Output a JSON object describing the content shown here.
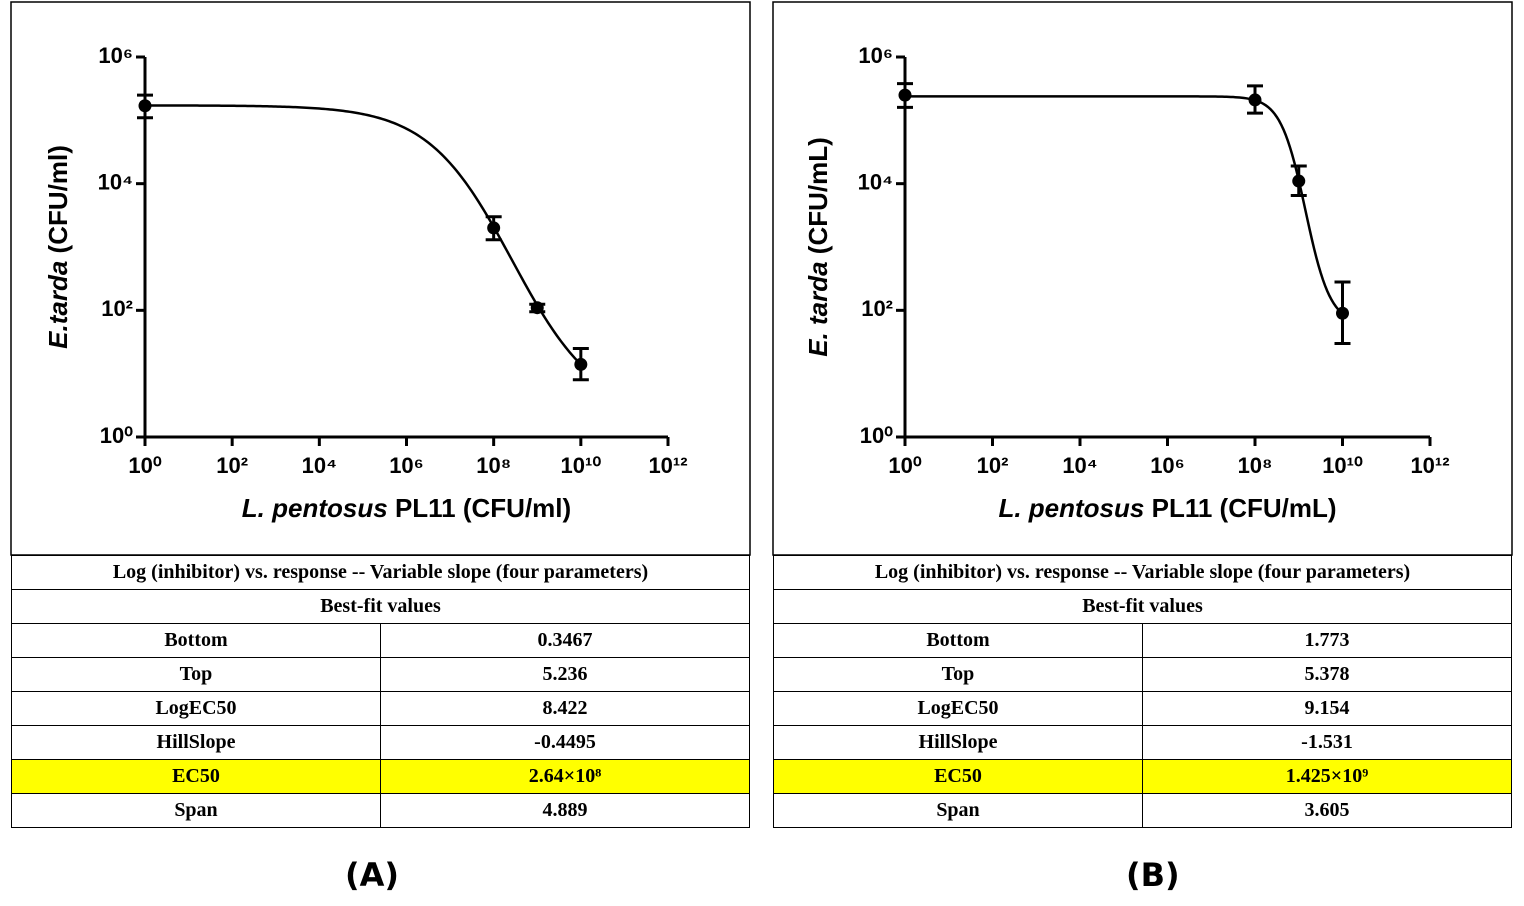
{
  "chart_data": [
    {
      "type": "scatter",
      "xscale": "log",
      "yscale": "log",
      "ylabel_species": "E.tarda",
      "ylabel_unit": "(CFU/ml)",
      "xlabel_species": "L. pentosus",
      "xlabel_unit": "PL11 (CFU/ml)",
      "x": [
        1,
        100000000.0,
        1000000000.0,
        10000000000.0
      ],
      "values": [
        170000,
        2000,
        110,
        14
      ],
      "lower": [
        110000,
        1300,
        95,
        8
      ],
      "upper": [
        250000,
        3000,
        125,
        25
      ],
      "color": "#000000",
      "xlim": [
        1,
        1000000000000.0
      ],
      "ylim": [
        1,
        1000000.0
      ],
      "xticks": [
        {
          "value": 1,
          "label": "10⁰"
        },
        {
          "value": 100,
          "label": "10²"
        },
        {
          "value": 10000,
          "label": "10⁴"
        },
        {
          "value": 1000000.0,
          "label": "10⁶"
        },
        {
          "value": 100000000.0,
          "label": "10⁸"
        },
        {
          "value": 10000000000.0,
          "label": "10¹⁰"
        },
        {
          "value": 1000000000000.0,
          "label": "10¹²"
        }
      ],
      "yticks": [
        {
          "value": 1,
          "label": "10⁰"
        },
        {
          "value": 100,
          "label": "10²"
        },
        {
          "value": 10000,
          "label": "10⁴"
        },
        {
          "value": 1000000.0,
          "label": "10⁶"
        }
      ]
    },
    {
      "type": "scatter",
      "xscale": "log",
      "yscale": "log",
      "ylabel_species": "E. tarda",
      "ylabel_unit": "(CFU/mL)",
      "xlabel_species": "L. pentosus",
      "xlabel_unit": "PL11 (CFU/mL)",
      "x": [
        1,
        100000000.0,
        1000000000.0,
        10000000000.0
      ],
      "values": [
        250000,
        210000,
        11000,
        90
      ],
      "lower": [
        160000,
        130000,
        6500,
        30
      ],
      "upper": [
        380000,
        350000,
        19000,
        280
      ],
      "color": "#000000",
      "xlim": [
        1,
        1000000000000.0
      ],
      "ylim": [
        1,
        1000000.0
      ],
      "xticks": [
        {
          "value": 1,
          "label": "10⁰"
        },
        {
          "value": 100,
          "label": "10²"
        },
        {
          "value": 10000,
          "label": "10⁴"
        },
        {
          "value": 1000000.0,
          "label": "10⁶"
        },
        {
          "value": 100000000.0,
          "label": "10⁸"
        },
        {
          "value": 10000000000.0,
          "label": "10¹⁰"
        },
        {
          "value": 1000000000000.0,
          "label": "10¹²"
        }
      ],
      "yticks": [
        {
          "value": 1,
          "label": "10⁰"
        },
        {
          "value": 100,
          "label": "10²"
        },
        {
          "value": 10000,
          "label": "10⁴"
        },
        {
          "value": 1000000.0,
          "label": "10⁶"
        }
      ]
    }
  ],
  "tables": [
    {
      "title": "Log (inhibitor) vs. response -- Variable slope (four parameters)",
      "subtitle": "Best-fit values",
      "rows": [
        [
          "Bottom",
          0.3467
        ],
        [
          "Top",
          5.236
        ],
        [
          "LogEC50",
          8.422
        ],
        [
          "HillSlope",
          -0.4495
        ],
        [
          "EC50",
          "2.64×10⁸"
        ],
        [
          "Span",
          4.889
        ]
      ]
    },
    {
      "title": "Log (inhibitor) vs. response -- Variable slope (four parameters)",
      "subtitle": "Best-fit values",
      "rows": [
        [
          "Bottom",
          1.773
        ],
        [
          "Top",
          5.378
        ],
        [
          "LogEC50",
          9.154
        ],
        [
          "HillSlope",
          -1.531
        ],
        [
          "EC50",
          "1.425×10⁹"
        ],
        [
          "Span",
          3.605
        ]
      ]
    }
  ],
  "panel_labels": [
    "(A)",
    "(B)"
  ]
}
